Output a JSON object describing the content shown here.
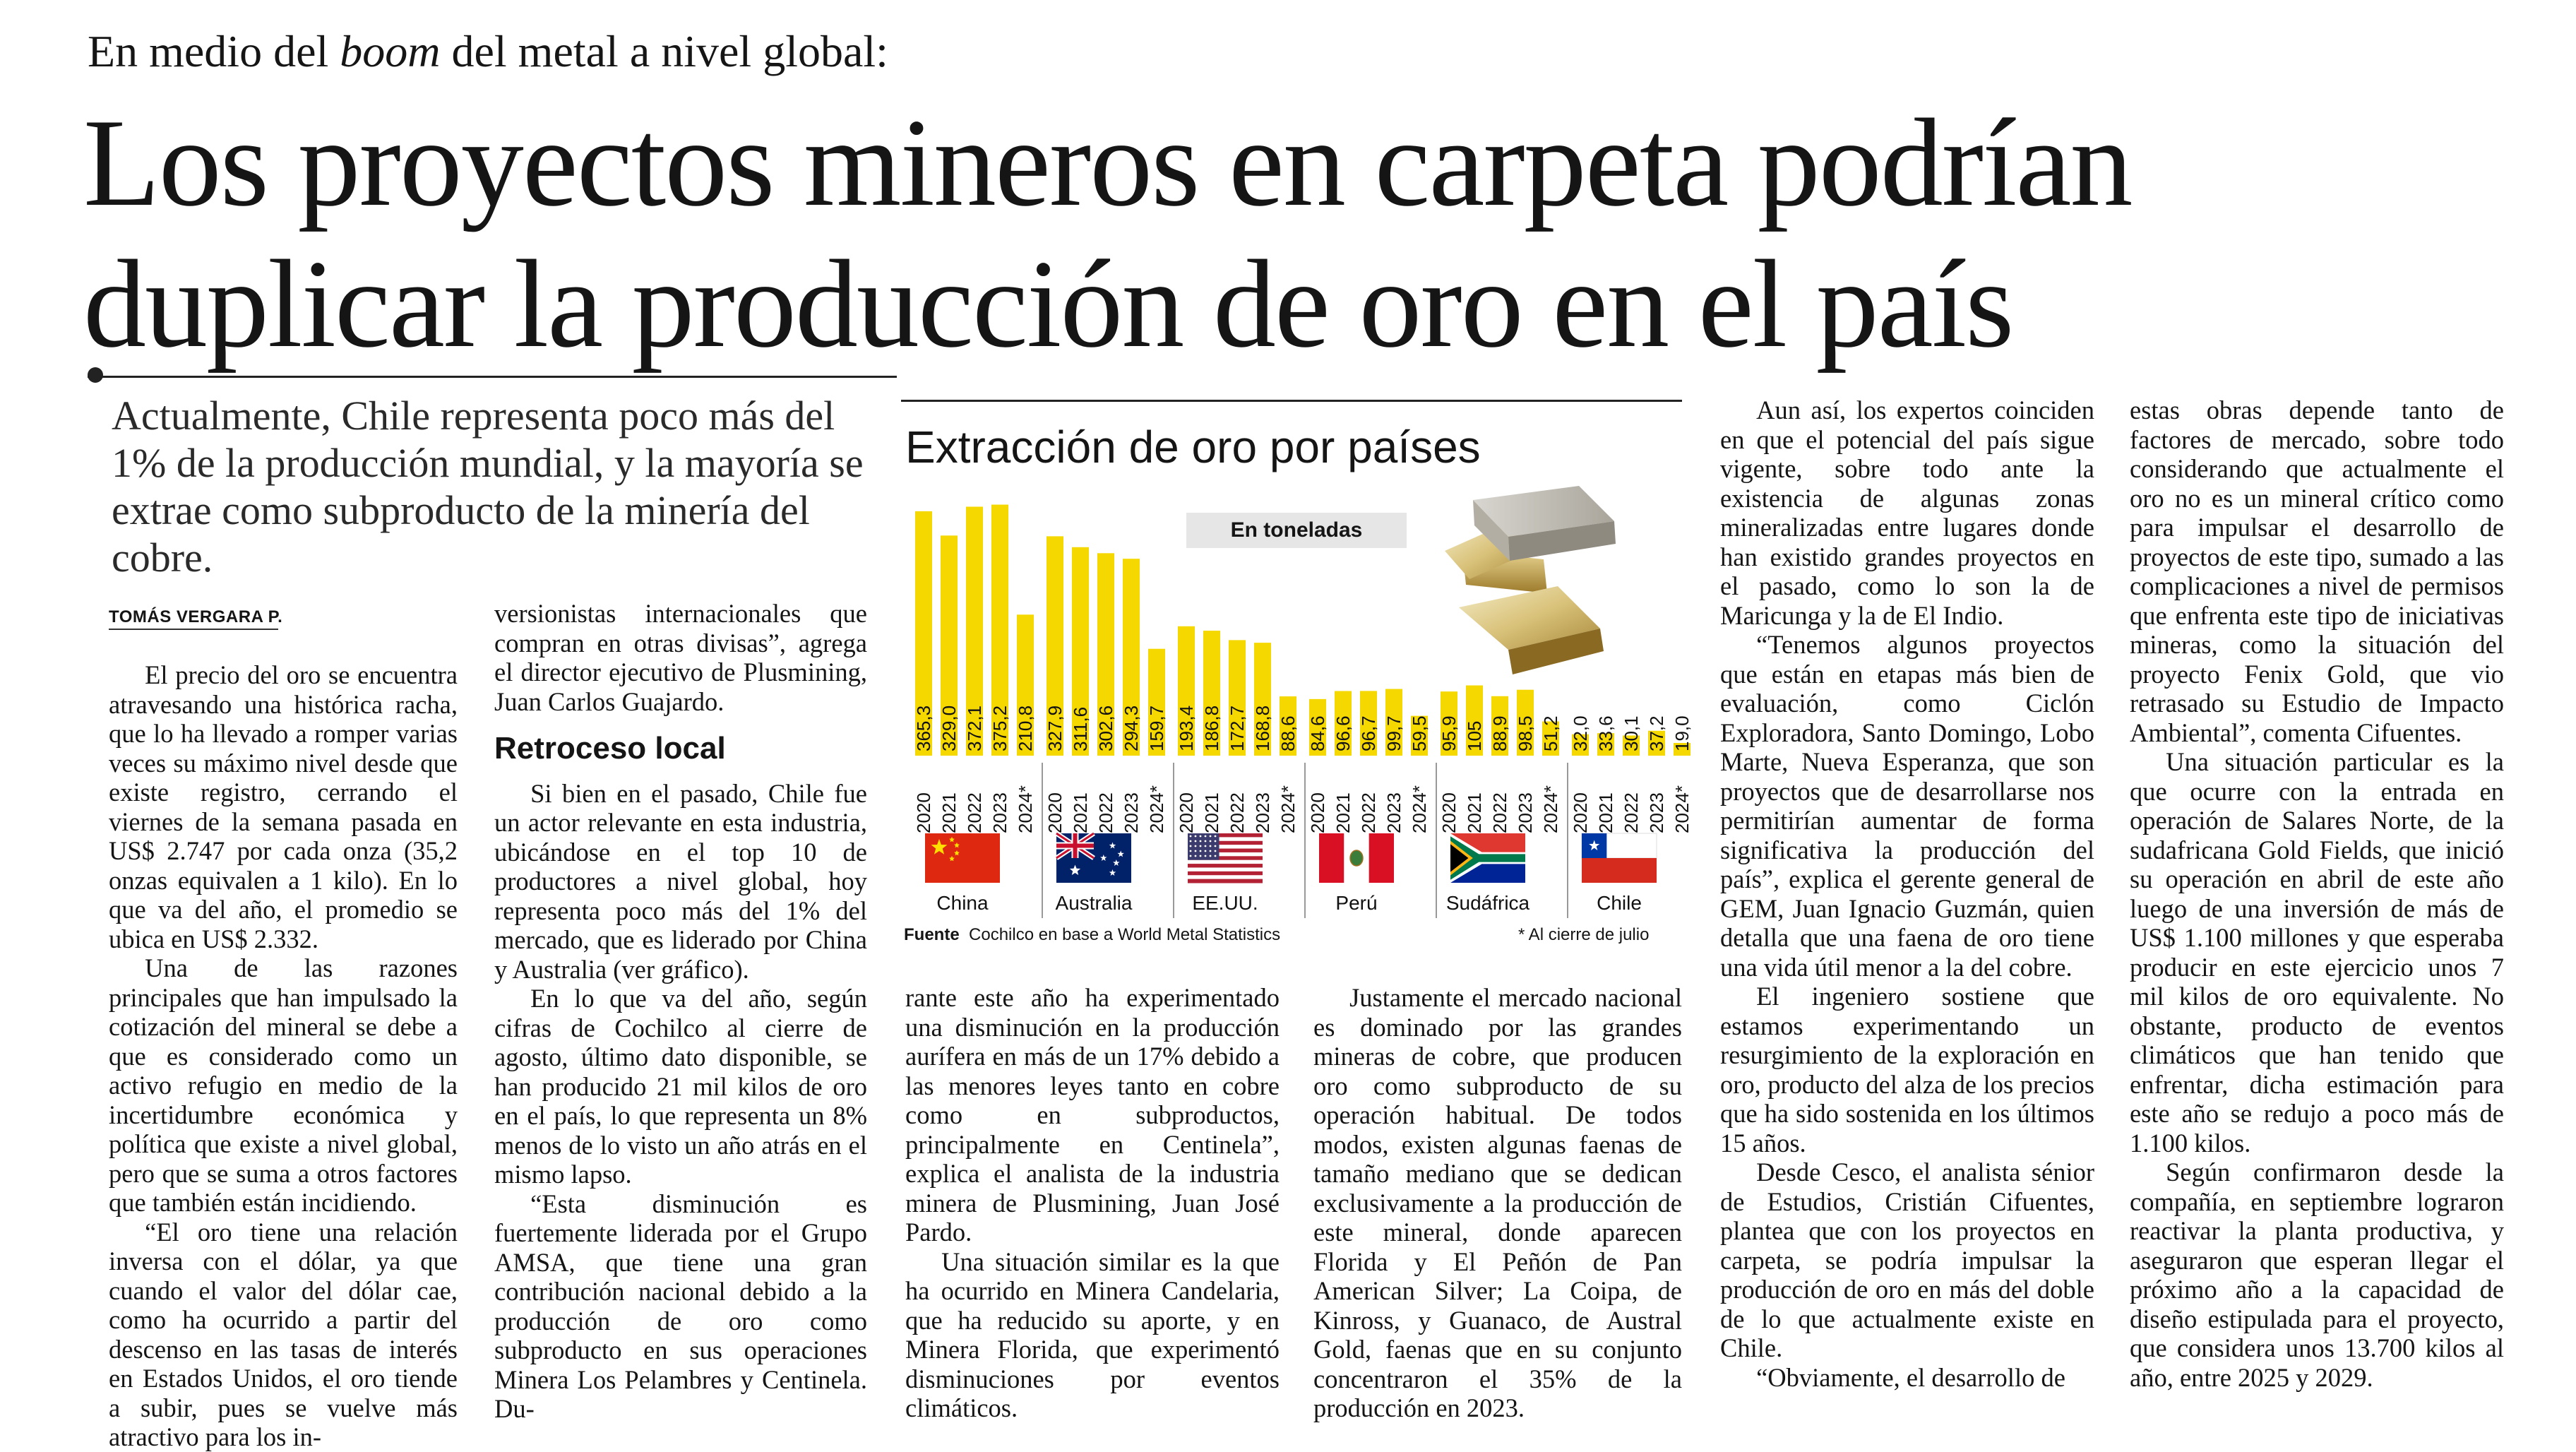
{
  "kicker": {
    "pre": "En medio del ",
    "em": "boom",
    "post": " del metal a nivel global:"
  },
  "headline": {
    "line1": "Los proyectos mineros en carpeta podrían",
    "line2": "duplicar la producción de oro en el país"
  },
  "lead": "Actualmente, Chile representa poco más del 1% de la producción mundial, y la mayoría se extrae como subproducto de la minería del cobre.",
  "byline": "TOMÁS VERGARA P.",
  "col1": {
    "p1": "El precio del oro se encuentra atravesando una histórica racha, que lo ha llevado a romper varias veces su máximo nivel desde que existe registro, cerrando el viernes de la semana pasada en US$ 2.747 por cada onza (35,2 onzas equivalen a 1 kilo). En lo que va del año, el promedio se ubica en US$ 2.332.",
    "p2": "Una de las razones principales que han impulsado la cotización del mineral se debe a que es considerado como un activo refugio en medio de la incertidumbre económica y política que existe a nivel global, pero que se suma a otros factores que también están incidiendo.",
    "p3": "“El oro tiene una relación inversa con el dólar, ya que cuando el valor del dólar cae, como ha ocurrido a partir del descenso en las tasas de interés en Estados Unidos, el oro tiende a subir, pues se vuelve más atractivo para los in-"
  },
  "col2": {
    "p1": "versionistas internacionales que compran en otras divisas”, agrega el director ejecutivo de Plusmining, Juan Carlos Guajardo.",
    "heading": "Retroceso local",
    "p2": "Si bien en el pasado, Chile fue un actor relevante en esta industria, ubicándose en el top 10 de productores a nivel global, hoy representa poco más del 1% del mercado, que es liderado por China y Australia (ver gráfico).",
    "p3": "En lo que va del año, según cifras de Cochilco al cierre de agosto, último dato disponible, se han producido 21 mil kilos de oro en el país, lo que representa un 8% menos de lo visto un año atrás en el mismo lapso.",
    "p4": "“Esta disminución es fuertemente liderada por el Grupo AMSA, que tiene una gran contribución nacional debido a la producción de oro como subproducto en sus operaciones Minera Los Pelambres y Centinela. Du-"
  },
  "col3": {
    "p1": "rante este año ha experimentado una disminución en la producción aurífera en más de un 17% debido a las menores leyes tanto en cobre como en subproductos, principalmente en Centinela”, explica el analista de la industria minera de Plusmining, Juan José Pardo.",
    "p2": "Una situación similar es la que ha ocurrido en Minera Candelaria, que ha reducido su aporte, y en Minera Florida, que experimentó disminuciones por eventos climáticos."
  },
  "col4": {
    "p1": "Justamente el mercado nacional es dominado por las grandes mineras de cobre, que producen oro como subproducto de su operación habitual. De todos modos, existen algunas faenas de tamaño mediano que se dedican exclusivamente a la producción de este mineral, donde aparecen Florida y El Peñón de Pan American Silver; La Coipa, de Kinross, y Guanaco, de Austral Gold, faenas que en su conjunto concentraron el 35% de la producción en 2023."
  },
  "col5": {
    "p1": "Aun así, los expertos coinciden en que el potencial del país sigue vigente, sobre todo ante la existencia de algunas zonas mineralizadas entre lugares donde han existido grandes proyectos en el pasado, como lo son la de Maricunga y la de El Indio.",
    "p2": "“Tenemos algunos proyectos que están en etapas más bien de evaluación, como Ciclón Exploradora, Santo Domingo, Lobo Marte, Nueva Esperanza, que son proyectos que de desarrollarse nos permitirían aumentar de forma significativa la producción del país”, explica el gerente general de GEM, Juan Ignacio Guzmán, quien detalla que una faena de oro tiene una vida útil menor a la del cobre.",
    "p3": "El ingeniero sostiene que estamos experimentando un resurgimiento de la exploración en oro, producto del alza de los precios que ha sido sostenida en los últimos 15 años.",
    "p4": "Desde Cesco, el analista sénior de Estudios, Cristián Cifuentes, plantea que con los proyectos en carpeta, se podría impulsar la producción de oro en más del doble de lo que actualmente existe en Chile.",
    "p5": "“Obviamente, el desarrollo de"
  },
  "col6": {
    "p1": "estas obras depende tanto de factores de mercado, sobre todo considerando que actualmente el oro no es un mineral crítico como para impulsar el desarrollo de proyectos de este tipo, sumado a las complicaciones a nivel de permisos que enfrenta este tipo de iniciativas mineras, como la situación del proyecto Fenix Gold, que vio retrasado su Estudio de Impacto Ambiental”, comenta Cifuentes.",
    "p2": "Una situación particular es la que ocurre con la entrada en operación de Salares Norte, de la sudafricana Gold Fields, que inició su operación en abril de este año luego de una inversión de más de US$ 1.100 millones y que esperaba producir en este ejercicio unos 7 mil kilos de oro equivalente. No obstante, producto de eventos climáticos que han tenido que enfrentar, dicha estimación para este año se redujo a poco más de 1.100 kilos.",
    "p3": "Según confirmaron desde la compañía, en septiembre lograron reactivar la planta productiva, y aseguraron que esperan llegar el próximo año a la capacidad de diseño estipulada para el proyecto, que considera unos 13.700 kilos al año, entre 2025 y 2029."
  },
  "chart_data": {
    "type": "bar",
    "title": "Extracción de oro por países",
    "unit_label": "En toneladas",
    "years": [
      "2020",
      "2021",
      "2022",
      "2023",
      "2024*"
    ],
    "groups": [
      {
        "country": "China",
        "flag": "china",
        "values": [
          365.3,
          329.0,
          372.1,
          375.2,
          210.8
        ],
        "labels": [
          "365,3",
          "329,0",
          "372,1",
          "375,2",
          "210,8"
        ]
      },
      {
        "country": "Australia",
        "flag": "australia",
        "values": [
          327.9,
          311.6,
          302.6,
          294.3,
          159.7
        ],
        "labels": [
          "327,9",
          "311,6",
          "302,6",
          "294,3",
          "159,7"
        ]
      },
      {
        "country": "EE.UU.",
        "flag": "usa",
        "values": [
          193.4,
          186.8,
          172.7,
          168.8,
          88.6
        ],
        "labels": [
          "193,4",
          "186,8",
          "172,7",
          "168,8",
          "88,6"
        ]
      },
      {
        "country": "Perú",
        "flag": "peru",
        "values": [
          84.6,
          96.6,
          96.7,
          99.7,
          59.5
        ],
        "labels": [
          "84,6",
          "96,6",
          "96,7",
          "99,7",
          "59,5"
        ]
      },
      {
        "country": "Sudáfrica",
        "flag": "south-africa",
        "values": [
          95.9,
          105,
          88.9,
          98.5,
          51.2
        ],
        "labels": [
          "95,9",
          "105",
          "88,9",
          "98,5",
          "51,2"
        ]
      },
      {
        "country": "Chile",
        "flag": "chile",
        "values": [
          32.0,
          33.6,
          30.1,
          37.2,
          19.0
        ],
        "labels": [
          "32,0",
          "33,6",
          "30,1",
          "37,2",
          "19,0"
        ]
      }
    ],
    "source_label": "Fuente",
    "source_text": "Cochilco en base a World Metal Statistics",
    "note": "* Al cierre de julio",
    "bar_color": "#f5d800"
  }
}
